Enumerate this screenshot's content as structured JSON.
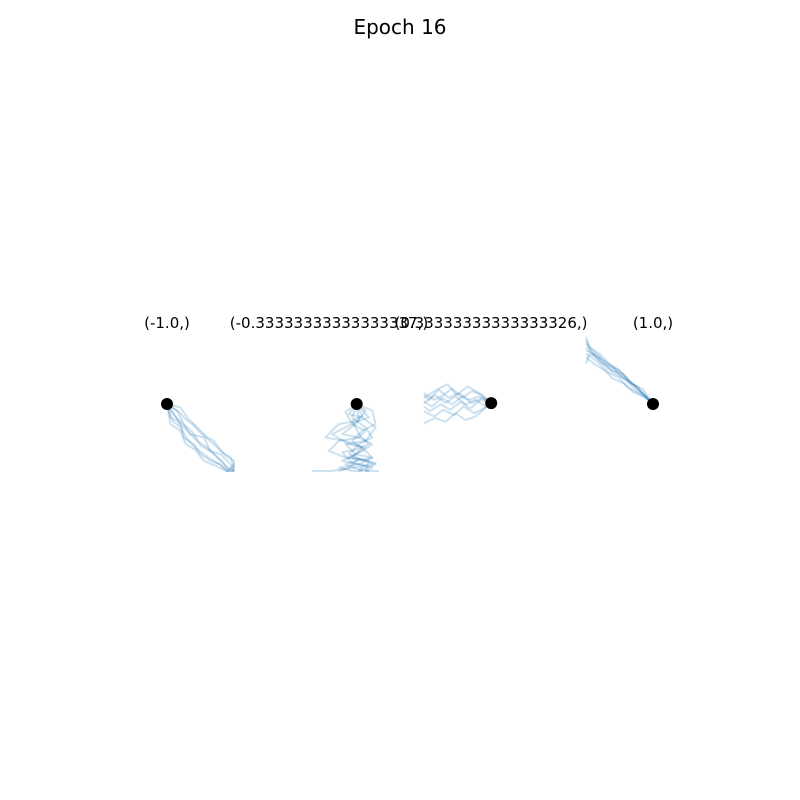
{
  "figure": {
    "title": "Epoch 16"
  },
  "chart_data": [
    {
      "type": "line",
      "title": "(-1.0,)",
      "start_point": [
        -1.0,
        0.0
      ],
      "xlim": [
        -1.0,
        0.0
      ],
      "ylim": [
        -1.0,
        0.0
      ],
      "colors": {
        "trajectory": "#1f77b4",
        "marker": "#000000"
      },
      "series": [
        {
          "x": [
            -1.0,
            -0.9,
            -0.8,
            -0.75,
            -0.6,
            -0.5,
            -0.35,
            -0.2,
            -0.1,
            0.0
          ],
          "y": [
            0.0,
            -0.15,
            -0.3,
            -0.5,
            -0.6,
            -0.75,
            -0.85,
            -0.9,
            -1.0,
            -1.0
          ]
        },
        {
          "x": [
            -1.0,
            -0.95,
            -0.85,
            -0.7,
            -0.55,
            -0.4,
            -0.25,
            -0.1,
            0.0
          ],
          "y": [
            0.0,
            -0.2,
            -0.25,
            -0.4,
            -0.55,
            -0.65,
            -0.8,
            -0.95,
            -1.0
          ]
        },
        {
          "x": [
            -1.0,
            -0.85,
            -0.75,
            -0.65,
            -0.45,
            -0.35,
            -0.2,
            -0.05,
            0.0
          ],
          "y": [
            0.0,
            -0.1,
            -0.3,
            -0.45,
            -0.5,
            -0.7,
            -0.75,
            -0.9,
            -1.0
          ]
        },
        {
          "x": [
            -1.0,
            -0.92,
            -0.8,
            -0.68,
            -0.52,
            -0.38,
            -0.22,
            -0.1,
            0.0
          ],
          "y": [
            0.0,
            -0.25,
            -0.35,
            -0.55,
            -0.7,
            -0.8,
            -0.9,
            -1.0,
            -0.9
          ]
        },
        {
          "x": [
            -1.0,
            -0.8,
            -0.7,
            -0.55,
            -0.4,
            -0.3,
            -0.15,
            0.0,
            0.0
          ],
          "y": [
            0.0,
            -0.05,
            -0.2,
            -0.35,
            -0.5,
            -0.55,
            -0.75,
            -0.85,
            -1.0
          ]
        },
        {
          "x": [
            -1.0,
            -0.88,
            -0.78,
            -0.62,
            -0.5,
            -0.33,
            -0.18,
            -0.08,
            0.0
          ],
          "y": [
            0.0,
            -0.18,
            -0.28,
            -0.42,
            -0.62,
            -0.72,
            -0.85,
            -0.98,
            -0.95
          ]
        },
        {
          "x": [
            -1.0,
            -0.95,
            -0.8,
            -0.72,
            -0.58,
            -0.45,
            -0.28,
            -0.12,
            0.0
          ],
          "y": [
            0.0,
            -0.3,
            -0.4,
            -0.6,
            -0.68,
            -0.85,
            -0.92,
            -1.0,
            -1.0
          ]
        },
        {
          "x": [
            -1.0,
            -0.82,
            -0.73,
            -0.6,
            -0.48,
            -0.3,
            -0.2,
            -0.05,
            0.0
          ],
          "y": [
            0.0,
            -0.12,
            -0.22,
            -0.32,
            -0.45,
            -0.6,
            -0.7,
            -0.8,
            -0.95
          ]
        }
      ]
    },
    {
      "type": "line",
      "title": "(-0.33333333333333337,)",
      "start_point": [
        -0.33333333333333337,
        0.0
      ],
      "xlim": [
        -1.0,
        0.0
      ],
      "ylim": [
        -1.0,
        0.0
      ],
      "colors": {
        "trajectory": "#1f77b4",
        "marker": "#000000"
      },
      "series": [
        {
          "x": [
            -0.33,
            -0.2,
            -0.35,
            -0.55,
            -0.3,
            -0.1,
            -0.25,
            -0.45,
            -0.2,
            -0.05,
            -0.3
          ],
          "y": [
            0.0,
            -0.1,
            -0.3,
            -0.45,
            -0.5,
            -0.6,
            -0.7,
            -0.8,
            -0.85,
            -0.9,
            -1.0
          ]
        },
        {
          "x": [
            -0.33,
            -0.45,
            -0.25,
            -0.05,
            -0.2,
            -0.5,
            -0.35,
            -0.1,
            -0.3,
            -0.6,
            -0.4
          ],
          "y": [
            0.0,
            -0.15,
            -0.2,
            -0.35,
            -0.55,
            -0.6,
            -0.75,
            -0.8,
            -0.9,
            -0.95,
            -1.0
          ]
        },
        {
          "x": [
            -0.33,
            -0.15,
            -0.3,
            -0.6,
            -0.8,
            -0.5,
            -0.25,
            -0.4,
            -0.15,
            -0.2,
            0.0
          ],
          "y": [
            0.0,
            -0.2,
            -0.25,
            -0.3,
            -0.5,
            -0.55,
            -0.65,
            -0.8,
            -0.85,
            -1.0,
            -1.0
          ]
        },
        {
          "x": [
            -0.33,
            -0.3,
            -0.5,
            -0.7,
            -0.45,
            -0.2,
            -0.35,
            -0.55,
            -0.3,
            -0.1,
            -0.2
          ],
          "y": [
            0.0,
            -0.25,
            -0.35,
            -0.45,
            -0.6,
            -0.65,
            -0.75,
            -0.85,
            -0.9,
            -0.95,
            -1.0
          ]
        },
        {
          "x": [
            -0.33,
            -0.1,
            -0.05,
            -0.25,
            -0.4,
            -0.2,
            -0.1,
            -0.35,
            -0.5,
            -0.25,
            -0.4
          ],
          "y": [
            0.0,
            -0.1,
            -0.3,
            -0.4,
            -0.55,
            -0.7,
            -0.8,
            -0.85,
            -0.9,
            -1.0,
            -1.0
          ]
        },
        {
          "x": [
            -0.33,
            -0.5,
            -0.4,
            -0.2,
            -0.3,
            -0.6,
            -0.75,
            -0.5,
            -0.3,
            -0.45,
            -0.6
          ],
          "y": [
            0.0,
            -0.12,
            -0.3,
            -0.4,
            -0.5,
            -0.55,
            -0.7,
            -0.8,
            -0.82,
            -0.95,
            -1.0
          ]
        },
        {
          "x": [
            -0.33,
            -0.25,
            -0.4,
            -0.3,
            -0.15,
            -0.35,
            -0.55,
            -0.4,
            -0.2,
            -0.3,
            -0.15
          ],
          "y": [
            0.0,
            -0.18,
            -0.25,
            -0.45,
            -0.6,
            -0.68,
            -0.72,
            -0.88,
            -0.92,
            -0.98,
            -1.0
          ]
        },
        {
          "x": [
            -0.33,
            -0.4,
            -0.2,
            -0.1,
            -0.3,
            -0.45,
            -0.2,
            -0.05,
            -0.25,
            -0.5,
            -0.7,
            -1.0
          ],
          "y": [
            0.0,
            -0.2,
            -0.35,
            -0.5,
            -0.6,
            -0.75,
            -0.85,
            -0.88,
            -0.93,
            -0.97,
            -1.0,
            -1.0
          ]
        }
      ]
    },
    {
      "type": "line",
      "title": "(0.33333333333333326,)",
      "start_point": [
        0.33333333333333326,
        0.0
      ],
      "xlim": [
        -0.67,
        0.33
      ],
      "ylim": [
        -0.67,
        0.33
      ],
      "colors": {
        "trajectory": "#1f77b4",
        "marker": "#000000"
      },
      "series": [
        {
          "x": [
            0.33,
            0.2,
            0.05,
            -0.1,
            -0.25,
            -0.4,
            -0.55,
            -0.67
          ],
          "y": [
            0.0,
            0.08,
            0.0,
            0.1,
            -0.02,
            0.08,
            -0.05,
            0.02
          ]
        },
        {
          "x": [
            0.33,
            0.15,
            0.0,
            -0.15,
            -0.3,
            -0.45,
            -0.6,
            -0.67
          ],
          "y": [
            0.0,
            0.1,
            0.05,
            0.15,
            0.08,
            0.2,
            0.05,
            0.12
          ]
        },
        {
          "x": [
            0.33,
            0.25,
            0.1,
            -0.05,
            -0.2,
            -0.35,
            -0.5,
            -0.67
          ],
          "y": [
            0.0,
            -0.05,
            0.05,
            -0.02,
            0.1,
            0.0,
            0.12,
            0.0
          ]
        },
        {
          "x": [
            0.33,
            0.18,
            0.02,
            -0.12,
            -0.28,
            -0.42,
            -0.58,
            -0.67
          ],
          "y": [
            0.0,
            0.05,
            -0.08,
            0.02,
            -0.1,
            -0.02,
            -0.12,
            -0.05
          ]
        },
        {
          "x": [
            0.33,
            0.2,
            0.05,
            -0.1,
            -0.25,
            -0.38,
            -0.52,
            -0.67
          ],
          "y": [
            0.0,
            0.12,
            0.18,
            0.08,
            0.22,
            0.12,
            0.05,
            0.15
          ]
        },
        {
          "x": [
            0.33,
            0.22,
            0.08,
            -0.08,
            -0.22,
            -0.38,
            -0.52,
            -0.67
          ],
          "y": [
            0.0,
            -0.08,
            -0.15,
            -0.05,
            -0.18,
            -0.1,
            -0.2,
            -0.12
          ]
        },
        {
          "x": [
            0.33,
            0.1,
            -0.05,
            -0.2,
            -0.35,
            -0.5,
            -0.67
          ],
          "y": [
            0.0,
            -0.2,
            -0.25,
            -0.15,
            -0.28,
            -0.22,
            -0.3
          ]
        },
        {
          "x": [
            0.33,
            0.15,
            -0.02,
            -0.18,
            -0.32,
            -0.48,
            -0.67
          ],
          "y": [
            0.0,
            0.15,
            0.25,
            0.12,
            0.28,
            0.2,
            0.08
          ]
        }
      ]
    },
    {
      "type": "line",
      "title": "(1.0,)",
      "start_point": [
        1.0,
        0.0
      ],
      "xlim": [
        0.0,
        1.0
      ],
      "ylim": [
        0.0,
        1.0
      ],
      "colors": {
        "trajectory": "#1f77b4",
        "marker": "#000000"
      },
      "series": [
        {
          "x": [
            1.0,
            0.85,
            0.7,
            0.55,
            0.4,
            0.25,
            0.1,
            0.0
          ],
          "y": [
            0.0,
            0.15,
            0.3,
            0.4,
            0.55,
            0.65,
            0.8,
            0.9
          ]
        },
        {
          "x": [
            1.0,
            0.9,
            0.75,
            0.6,
            0.45,
            0.3,
            0.15,
            0.0
          ],
          "y": [
            0.0,
            0.12,
            0.2,
            0.35,
            0.45,
            0.55,
            0.7,
            0.85
          ]
        },
        {
          "x": [
            1.0,
            0.8,
            0.65,
            0.5,
            0.35,
            0.2,
            0.05,
            0.0
          ],
          "y": [
            0.0,
            0.2,
            0.35,
            0.5,
            0.6,
            0.75,
            0.85,
            1.0
          ]
        },
        {
          "x": [
            1.0,
            0.88,
            0.7,
            0.58,
            0.4,
            0.28,
            0.12,
            0.0
          ],
          "y": [
            0.0,
            0.1,
            0.18,
            0.3,
            0.38,
            0.5,
            0.6,
            0.7
          ]
        },
        {
          "x": [
            1.0,
            0.82,
            0.72,
            0.52,
            0.42,
            0.22,
            0.08,
            0.0
          ],
          "y": [
            0.0,
            0.18,
            0.28,
            0.42,
            0.52,
            0.62,
            0.78,
            0.95
          ]
        },
        {
          "x": [
            1.0,
            0.92,
            0.78,
            0.66,
            0.5,
            0.35,
            0.18,
            0.0
          ],
          "y": [
            0.0,
            0.08,
            0.25,
            0.32,
            0.5,
            0.58,
            0.72,
            0.8
          ]
        },
        {
          "x": [
            1.0,
            0.85,
            0.68,
            0.55,
            0.38,
            0.2,
            0.05,
            0.0
          ],
          "y": [
            0.0,
            0.22,
            0.3,
            0.45,
            0.5,
            0.68,
            0.75,
            0.6
          ]
        },
        {
          "x": [
            1.0,
            0.95,
            0.8,
            0.62,
            0.48,
            0.32,
            0.15,
            0.0
          ],
          "y": [
            0.0,
            0.05,
            0.15,
            0.25,
            0.4,
            0.48,
            0.65,
            0.75
          ]
        }
      ]
    }
  ]
}
